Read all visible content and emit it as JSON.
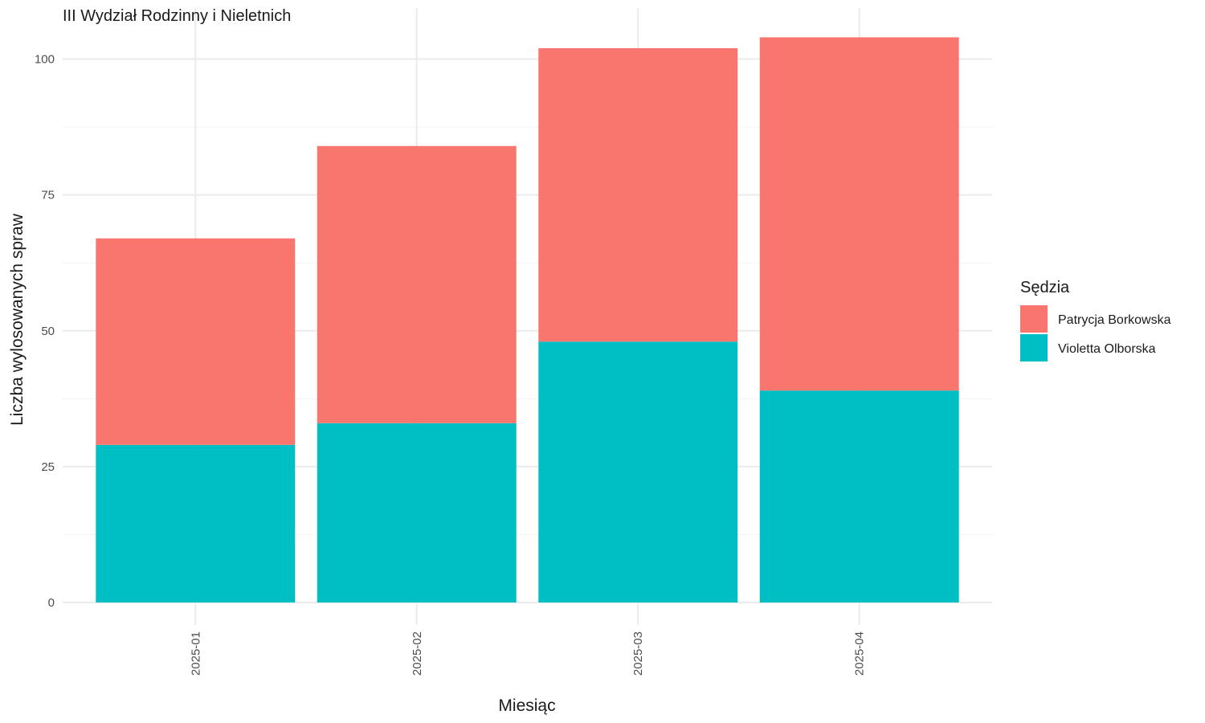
{
  "chart_data": {
    "type": "bar",
    "stacked": true,
    "title": "III Wydział Rodzinny i Nieletnich",
    "xlabel": "Miesiąc",
    "ylabel": "Liczba wylosowanych spraw",
    "categories": [
      "2025-01",
      "2025-02",
      "2025-03",
      "2025-04"
    ],
    "series": [
      {
        "name": "Violetta Olborska",
        "values": [
          29,
          33,
          48,
          39
        ],
        "color": "#00BFC4"
      },
      {
        "name": "Patrycja Borkowska",
        "values": [
          38,
          51,
          54,
          65
        ],
        "color": "#F8766D"
      }
    ],
    "ylim": [
      0,
      104
    ],
    "yticks": [
      0,
      25,
      50,
      75,
      100
    ],
    "grid": true,
    "legend": {
      "title": "Sędzia",
      "placement": "right",
      "order": [
        "Patrycja Borkowska",
        "Violetta Olborska"
      ]
    }
  }
}
